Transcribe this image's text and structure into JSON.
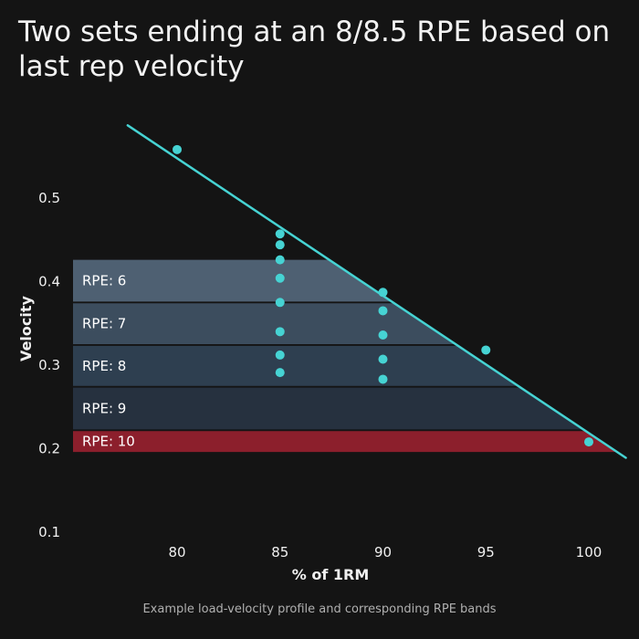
{
  "title": "Two sets ending at an 8/8.5 RPE based on last rep velocity",
  "caption": "Example load-velocity profile and corresponding RPE bands",
  "chart_data": {
    "type": "scatter",
    "title": "Two sets ending at an 8/8.5 RPE based on last rep velocity",
    "xlabel": "% of 1RM",
    "ylabel": "Velocity",
    "xlim": [
      75,
      102
    ],
    "ylim": [
      0.1,
      0.6
    ],
    "x_ticks": [
      80,
      85,
      90,
      95,
      100
    ],
    "y_ticks": [
      0.1,
      0.2,
      0.3,
      0.4,
      0.5
    ],
    "trend_line": {
      "x": [
        77.6,
        101.8
      ],
      "y": [
        0.586,
        0.188
      ]
    },
    "points": [
      {
        "x": 80,
        "y": 0.557
      },
      {
        "x": 85,
        "y": 0.456
      },
      {
        "x": 85,
        "y": 0.443
      },
      {
        "x": 85,
        "y": 0.425
      },
      {
        "x": 85,
        "y": 0.403
      },
      {
        "x": 85,
        "y": 0.374
      },
      {
        "x": 85,
        "y": 0.339
      },
      {
        "x": 85,
        "y": 0.311
      },
      {
        "x": 85,
        "y": 0.29
      },
      {
        "x": 90,
        "y": 0.386
      },
      {
        "x": 90,
        "y": 0.364
      },
      {
        "x": 90,
        "y": 0.335
      },
      {
        "x": 90,
        "y": 0.306
      },
      {
        "x": 90,
        "y": 0.282
      },
      {
        "x": 95,
        "y": 0.317
      },
      {
        "x": 100,
        "y": 0.207
      }
    ],
    "bands": [
      {
        "label": "RPE:  6",
        "y_low": 0.375,
        "y_high": 0.425,
        "color": "#4e6072"
      },
      {
        "label": "RPE:  7",
        "y_low": 0.324,
        "y_high": 0.373,
        "color": "#3c4d5e"
      },
      {
        "label": "RPE:  8",
        "y_low": 0.274,
        "y_high": 0.322,
        "color": "#2e3f50"
      },
      {
        "label": "RPE:  9",
        "y_low": 0.222,
        "y_high": 0.272,
        "color": "#26313f"
      },
      {
        "label": "RPE:  10",
        "y_low": 0.195,
        "y_high": 0.22,
        "color": "#8c1f2c"
      }
    ],
    "colors": {
      "line": "#46d3d3",
      "points": "#46d3d3",
      "background": "#141414"
    }
  }
}
